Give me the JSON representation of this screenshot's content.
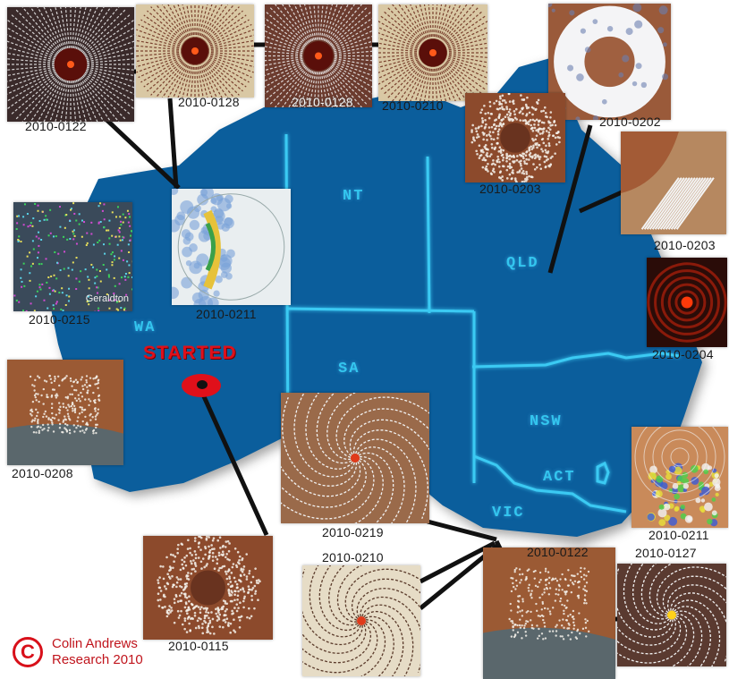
{
  "regions": {
    "nt": "NT",
    "qld": "QLD",
    "wa": "WA",
    "sa": "SA",
    "nsw": "NSW",
    "act": "ACT",
    "vic": "VIC"
  },
  "marker": {
    "label": "STARTED"
  },
  "credit": {
    "symbol": "C",
    "line1": "Colin Andrews",
    "line2": "Research 2010"
  },
  "colors": {
    "map_fill": "#0b5e9c",
    "border_glow": "#39c8f2",
    "marker": "#e0101a",
    "connector": "#111111"
  },
  "photos": [
    {
      "id": "p1",
      "date": "2010-0122",
      "style": "radial-dark"
    },
    {
      "id": "p2",
      "date": "2010-0128",
      "style": "radial-light"
    },
    {
      "id": "p3",
      "date": "2010-0128",
      "style": "radial-dense"
    },
    {
      "id": "p4",
      "date": "2010-0210",
      "style": "radial-light"
    },
    {
      "id": "p5",
      "date": "2010-0202",
      "style": "ring"
    },
    {
      "id": "p6",
      "date": "2010-0203",
      "style": "dots-circle"
    },
    {
      "id": "p7",
      "date": "2010-0203",
      "style": "coast-streaks"
    },
    {
      "id": "p8",
      "date": "2010-0204",
      "style": "red-radar"
    },
    {
      "id": "p9",
      "date": "2010-0211",
      "style": "weather-map"
    },
    {
      "id": "p10",
      "date": "2010-0215",
      "style": "green-noise",
      "caption": "Geraldton"
    },
    {
      "id": "p11",
      "date": "2010-0208",
      "style": "dots-grid"
    },
    {
      "id": "p12",
      "date": "2010-0219",
      "style": "spiral"
    },
    {
      "id": "p13",
      "date": "2010-0211",
      "style": "weather-radar"
    },
    {
      "id": "p14",
      "date": "2010-0115",
      "style": "dots-circle"
    },
    {
      "id": "p15",
      "date": "2010-0210",
      "style": "spiral-light"
    },
    {
      "id": "p16",
      "date": "2010-0122",
      "style": "dots-grid"
    },
    {
      "id": "p17",
      "date": "2010-0127",
      "style": "spiral-red"
    }
  ]
}
